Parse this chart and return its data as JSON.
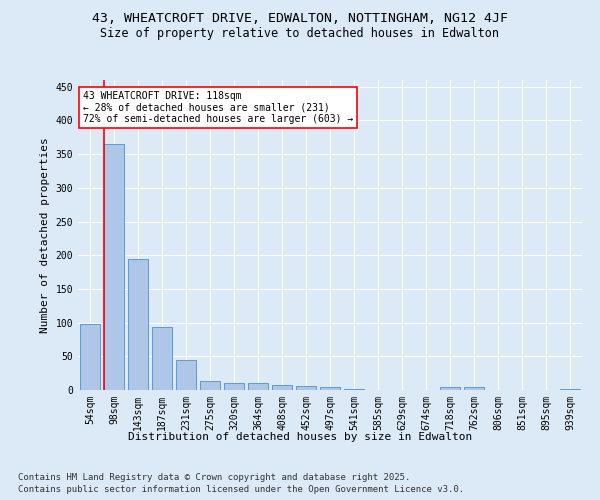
{
  "title_line1": "43, WHEATCROFT DRIVE, EDWALTON, NOTTINGHAM, NG12 4JF",
  "title_line2": "Size of property relative to detached houses in Edwalton",
  "xlabel": "Distribution of detached houses by size in Edwalton",
  "ylabel": "Number of detached properties",
  "categories": [
    "54sqm",
    "98sqm",
    "143sqm",
    "187sqm",
    "231sqm",
    "275sqm",
    "320sqm",
    "364sqm",
    "408sqm",
    "452sqm",
    "497sqm",
    "541sqm",
    "585sqm",
    "629sqm",
    "674sqm",
    "718sqm",
    "762sqm",
    "806sqm",
    "851sqm",
    "895sqm",
    "939sqm"
  ],
  "values": [
    98,
    365,
    195,
    93,
    45,
    13,
    10,
    10,
    8,
    6,
    5,
    1,
    0,
    0,
    0,
    4,
    5,
    0,
    0,
    0,
    1
  ],
  "bar_color": "#aec6e8",
  "bar_edge_color": "#5b9bd5",
  "red_line_bar_index": 1,
  "annotation_text": "43 WHEATCROFT DRIVE: 118sqm\n← 28% of detached houses are smaller (231)\n72% of semi-detached houses are larger (603) →",
  "annotation_box_color": "white",
  "annotation_box_edge_color": "red",
  "ylim": [
    0,
    460
  ],
  "yticks": [
    0,
    50,
    100,
    150,
    200,
    250,
    300,
    350,
    400,
    450
  ],
  "background_color": "#dce9f7",
  "plot_bg_color": "#dce9f7",
  "grid_color": "white",
  "footer_line1": "Contains HM Land Registry data © Crown copyright and database right 2025.",
  "footer_line2": "Contains public sector information licensed under the Open Government Licence v3.0.",
  "title_fontsize": 9.5,
  "subtitle_fontsize": 8.5,
  "tick_fontsize": 7,
  "label_fontsize": 8,
  "annotation_fontsize": 7,
  "footer_fontsize": 6.5
}
